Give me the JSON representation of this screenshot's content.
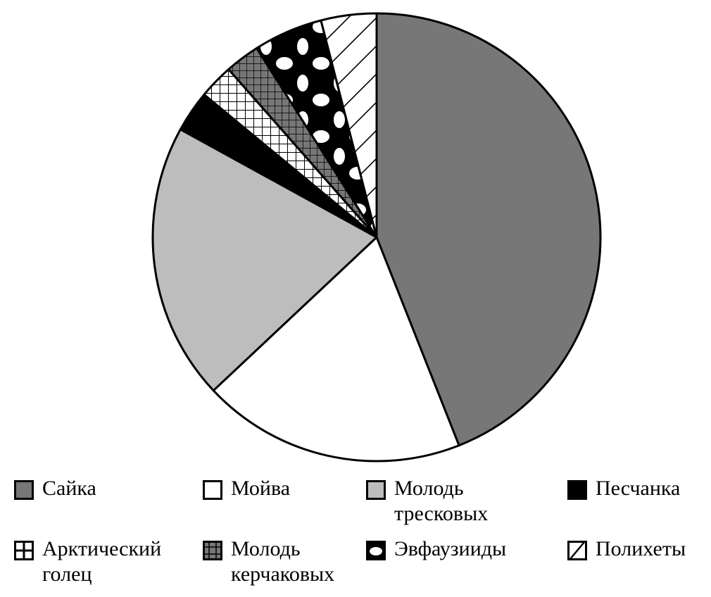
{
  "chart_data": {
    "type": "pie",
    "title": "",
    "slices": [
      {
        "label": "Сайка",
        "value": 44.0,
        "pattern": "solid-dark"
      },
      {
        "label": "Мойва",
        "value": 19.0,
        "pattern": "white"
      },
      {
        "label": "Молодь\nтресковых",
        "value": 20.0,
        "pattern": "solid-light"
      },
      {
        "label": "Песчанка",
        "value": 3.0,
        "pattern": "black"
      },
      {
        "label": "Арктический\nголец",
        "value": 2.5,
        "pattern": "white-grid"
      },
      {
        "label": "Молодь\nкерчаковых",
        "value": 2.5,
        "pattern": "dark-grid"
      },
      {
        "label": "Эвфаузииды",
        "value": 5.0,
        "pattern": "black-dots"
      },
      {
        "label": "Полихеты",
        "value": 4.0,
        "pattern": "hatch"
      }
    ],
    "start_angle_deg": 0,
    "direction": "clockwise",
    "legend_position": "bottom",
    "colors": {
      "dark": "#777777",
      "light": "#bdbdbd",
      "black": "#000000",
      "white": "#ffffff"
    }
  }
}
